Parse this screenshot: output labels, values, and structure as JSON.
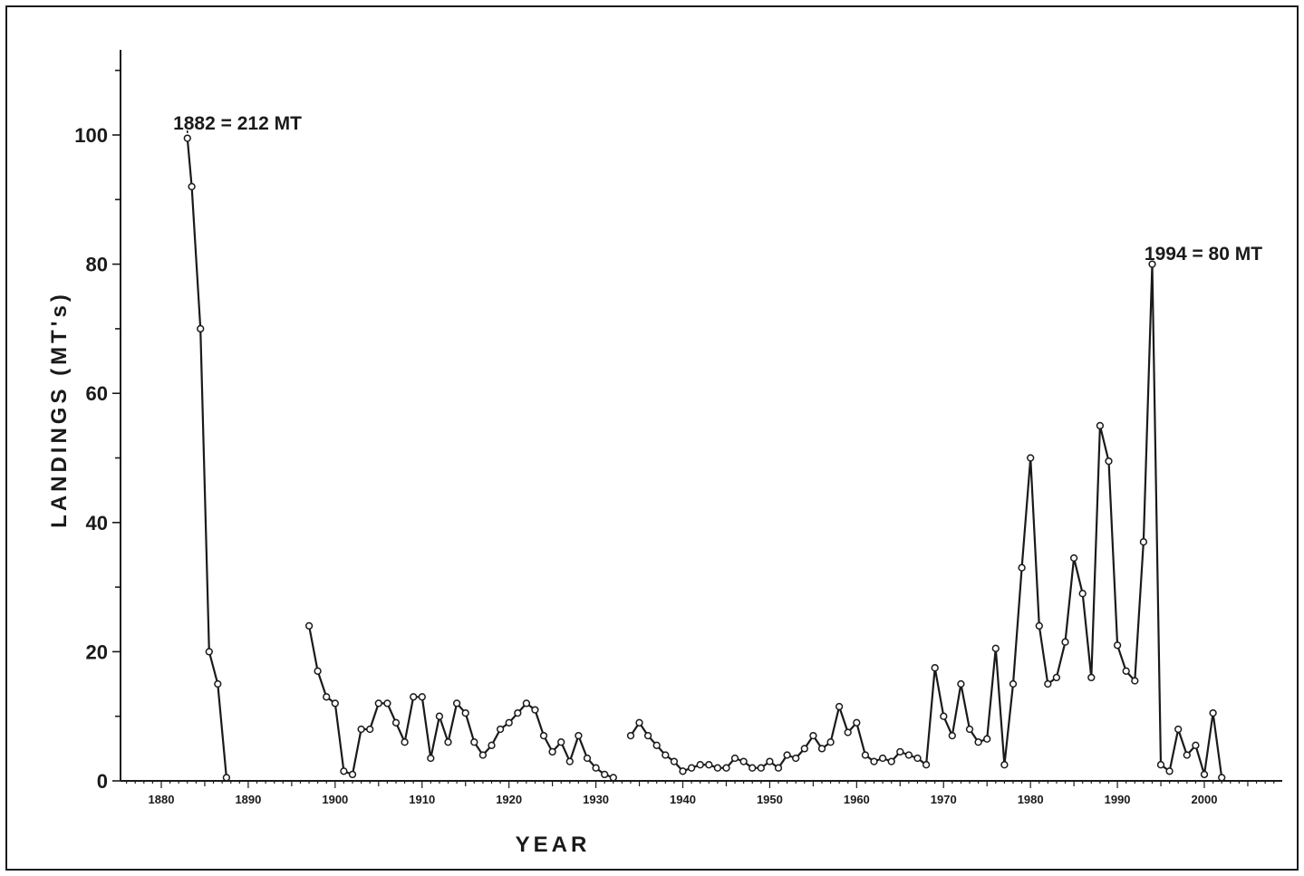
{
  "chart_data": {
    "type": "line",
    "title": "",
    "xlabel": "YEAR",
    "ylabel": "LANDINGS   (MT's)",
    "xlim": [
      1875,
      2009
    ],
    "ylim": [
      0,
      112
    ],
    "x_ticks": [
      1880,
      1890,
      1900,
      1910,
      1920,
      1930,
      1940,
      1950,
      1960,
      1970,
      1980,
      1990,
      2000
    ],
    "x_tick_labels": [
      "1880",
      "1890",
      "1900",
      "1910",
      "1920",
      "1930",
      "1940",
      "1950",
      "1960",
      "1970",
      "1980",
      "1990",
      "2000"
    ],
    "y_ticks": [
      0,
      20,
      40,
      60,
      80,
      100
    ],
    "y_tick_labels": [
      "0",
      "20",
      "40",
      "60",
      "80",
      "100"
    ],
    "grid": false,
    "annotations": [
      {
        "text": "1882 = 212 MT",
        "x": 1883,
        "y": 100
      },
      {
        "text": "1994 = 80 MT",
        "x": 1994,
        "y": 80
      }
    ],
    "series": [
      {
        "segments": [
          [
            [
              1883,
              99.5
            ],
            [
              1883.5,
              92
            ],
            [
              1884.5,
              70
            ],
            [
              1885.5,
              20
            ],
            [
              1886.5,
              15
            ],
            [
              1887.5,
              0.5
            ]
          ],
          [
            [
              1897,
              24
            ],
            [
              1898,
              17
            ],
            [
              1899,
              13
            ],
            [
              1900,
              12
            ],
            [
              1901,
              1.5
            ],
            [
              1902,
              1
            ],
            [
              1903,
              8
            ],
            [
              1904,
              8
            ],
            [
              1905,
              12
            ],
            [
              1906,
              12
            ],
            [
              1907,
              9
            ],
            [
              1908,
              6
            ],
            [
              1909,
              13
            ],
            [
              1910,
              13
            ],
            [
              1911,
              3.5
            ],
            [
              1912,
              10
            ],
            [
              1913,
              6
            ],
            [
              1914,
              12
            ],
            [
              1915,
              10.5
            ],
            [
              1916,
              6
            ],
            [
              1917,
              4
            ],
            [
              1918,
              5.5
            ],
            [
              1919,
              8
            ],
            [
              1920,
              9
            ],
            [
              1921,
              10.5
            ],
            [
              1922,
              12
            ],
            [
              1923,
              11
            ],
            [
              1924,
              7
            ],
            [
              1925,
              4.5
            ],
            [
              1926,
              6
            ],
            [
              1927,
              3
            ],
            [
              1928,
              7
            ],
            [
              1929,
              3.5
            ],
            [
              1930,
              2
            ],
            [
              1931,
              1
            ],
            [
              1932,
              0.5
            ]
          ],
          [
            [
              1934,
              7
            ],
            [
              1935,
              9
            ],
            [
              1936,
              7
            ],
            [
              1937,
              5.5
            ],
            [
              1938,
              4
            ],
            [
              1939,
              3
            ],
            [
              1940,
              1.5
            ],
            [
              1941,
              2
            ],
            [
              1942,
              2.5
            ],
            [
              1943,
              2.5
            ],
            [
              1944,
              2
            ],
            [
              1945,
              2
            ],
            [
              1946,
              3.5
            ],
            [
              1947,
              3
            ],
            [
              1948,
              2
            ],
            [
              1949,
              2
            ],
            [
              1950,
              3
            ],
            [
              1951,
              2
            ],
            [
              1952,
              4
            ],
            [
              1953,
              3.5
            ],
            [
              1954,
              5
            ],
            [
              1955,
              7
            ],
            [
              1956,
              5
            ],
            [
              1957,
              6
            ],
            [
              1958,
              11.5
            ],
            [
              1959,
              7.5
            ],
            [
              1960,
              9
            ],
            [
              1961,
              4
            ],
            [
              1962,
              3
            ],
            [
              1963,
              3.5
            ],
            [
              1964,
              3
            ],
            [
              1965,
              4.5
            ],
            [
              1966,
              4
            ],
            [
              1967,
              3.5
            ],
            [
              1968,
              2.5
            ],
            [
              1969,
              17.5
            ],
            [
              1970,
              10
            ],
            [
              1971,
              7
            ],
            [
              1972,
              15
            ],
            [
              1973,
              8
            ],
            [
              1974,
              6
            ],
            [
              1975,
              6.5
            ],
            [
              1976,
              20.5
            ],
            [
              1977,
              2.5
            ],
            [
              1978,
              15
            ],
            [
              1979,
              33
            ],
            [
              1980,
              50
            ],
            [
              1981,
              24
            ],
            [
              1982,
              15
            ],
            [
              1983,
              16
            ],
            [
              1984,
              21.5
            ],
            [
              1985,
              34.5
            ],
            [
              1986,
              29
            ],
            [
              1987,
              16
            ],
            [
              1988,
              55
            ],
            [
              1989,
              49.5
            ],
            [
              1990,
              21
            ],
            [
              1991,
              17
            ],
            [
              1992,
              15.5
            ],
            [
              1993,
              37
            ],
            [
              1994,
              80
            ],
            [
              1995,
              2.5
            ],
            [
              1996,
              1.5
            ],
            [
              1997,
              8
            ],
            [
              1998,
              4
            ],
            [
              1999,
              5.5
            ],
            [
              2000,
              1
            ],
            [
              2001,
              10.5
            ],
            [
              2002,
              0.5
            ]
          ]
        ]
      }
    ]
  }
}
